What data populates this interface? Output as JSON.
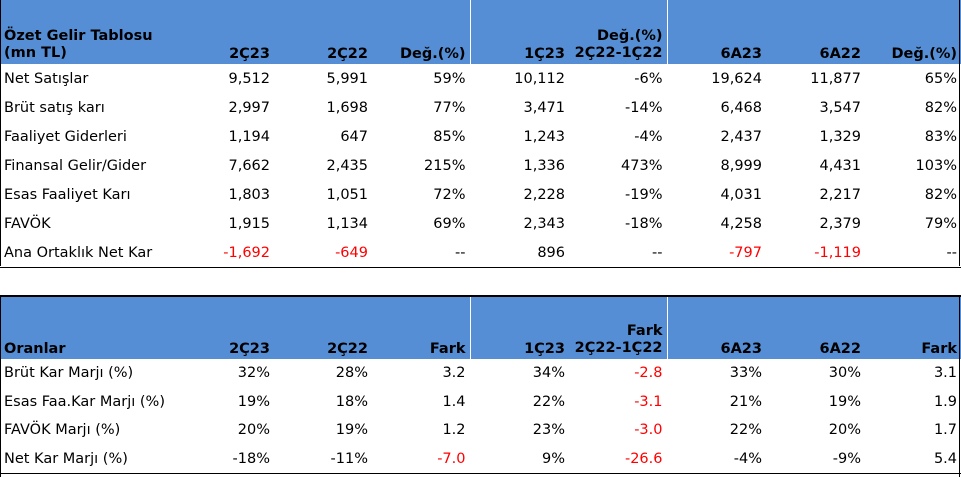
{
  "income_table": {
    "title_line1": "Özet Gelir Tablosu",
    "title_line2": "(mn TL)",
    "col_2q23": "2Ç23",
    "col_2q22": "2Ç22",
    "col_chg1": "Değ.(%)",
    "col_1q23": "1Ç23",
    "col_chg2_top": "Değ.(%)",
    "col_chg2_bottom": "2Ç22-1Ç22",
    "col_6a23": "6A23",
    "col_6a22": "6A22",
    "col_chg3": "Değ.(%)",
    "rows": [
      {
        "label": "Net Satışlar",
        "c1": "9,512",
        "c2": "5,991",
        "c3": "59%",
        "c4": "10,112",
        "c5": "-6%",
        "c6": "19,624",
        "c7": "11,877",
        "c8": "65%"
      },
      {
        "label": "Brüt satış karı",
        "c1": "2,997",
        "c2": "1,698",
        "c3": "77%",
        "c4": "3,471",
        "c5": "-14%",
        "c6": "6,468",
        "c7": "3,547",
        "c8": "82%"
      },
      {
        "label": "Faaliyet Giderleri",
        "c1": "1,194",
        "c2": "647",
        "c3": "85%",
        "c4": "1,243",
        "c5": "-4%",
        "c6": "2,437",
        "c7": "1,329",
        "c8": "83%"
      },
      {
        "label": "Finansal Gelir/Gider",
        "c1": "7,662",
        "c2": "2,435",
        "c3": "215%",
        "c4": "1,336",
        "c5": "473%",
        "c6": "8,999",
        "c7": "4,431",
        "c8": "103%"
      },
      {
        "label": "Esas Faaliyet Karı",
        "c1": "1,803",
        "c2": "1,051",
        "c3": "72%",
        "c4": "2,228",
        "c5": "-19%",
        "c6": "4,031",
        "c7": "2,217",
        "c8": "82%"
      },
      {
        "label": "FAVÖK",
        "c1": "1,915",
        "c2": "1,134",
        "c3": "69%",
        "c4": "2,343",
        "c5": "-18%",
        "c6": "4,258",
        "c7": "2,379",
        "c8": "79%"
      },
      {
        "label": "Ana Ortaklık Net Kar",
        "c1": "-1,692",
        "c2": "-649",
        "c3": "--",
        "c4": "896",
        "c5": "--",
        "c6": "-797",
        "c7": "-1,119",
        "c8": "--"
      }
    ]
  },
  "ratio_table": {
    "title": "Oranlar",
    "col_2q23": "2Ç23",
    "col_2q22": "2Ç22",
    "col_diff1": "Fark",
    "col_1q23": "1Ç23",
    "col_diff2_top": "Fark",
    "col_diff2_bottom": "2Ç22-1Ç22",
    "col_6a23": "6A23",
    "col_6a22": "6A22",
    "col_diff3": "Fark",
    "rows": [
      {
        "label": "Brüt Kar Marjı (%)",
        "c1": "32%",
        "c2": "28%",
        "c3": "3.2",
        "c4": "34%",
        "c5": "-2.8",
        "c6": "33%",
        "c7": "30%",
        "c8": "3.1"
      },
      {
        "label": "Esas Faa.Kar Marjı (%)",
        "c1": "19%",
        "c2": "18%",
        "c3": "1.4",
        "c4": "22%",
        "c5": "-3.1",
        "c6": "21%",
        "c7": "19%",
        "c8": "1.9"
      },
      {
        "label": "FAVÖK Marjı (%)",
        "c1": "20%",
        "c2": "19%",
        "c3": "1.2",
        "c4": "23%",
        "c5": "-3.0",
        "c6": "22%",
        "c7": "20%",
        "c8": "1.7"
      },
      {
        "label": "Net Kar Marjı (%)",
        "c1": "-18%",
        "c2": "-11%",
        "c3": "-7.0",
        "c4": "9%",
        "c5": "-26.6",
        "c6": "-4%",
        "c7": "-9%",
        "c8": "5.4"
      }
    ]
  },
  "colors": {
    "header_bg": "#558ed5",
    "negative": "#ff0000",
    "text": "#000000"
  }
}
